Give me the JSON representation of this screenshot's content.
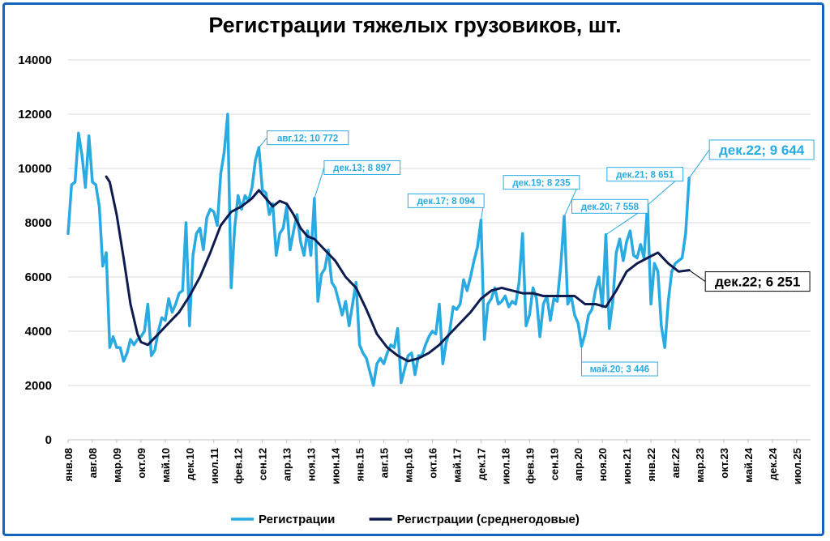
{
  "chart_data": {
    "type": "line",
    "title": "Регистрации тяжелых грузовиков, шт.",
    "ylim": [
      0,
      14000
    ],
    "yticks": [
      "0",
      "2000",
      "4000",
      "6000",
      "8000",
      "10000",
      "12000",
      "14000"
    ],
    "grid": "horizontal",
    "legend_position": "bottom",
    "x_start": "янв.08",
    "x_end": "ноя.25",
    "xtick_labels": [
      "янв.08",
      "авг.08",
      "мар.09",
      "окт.09",
      "май.10",
      "дек.10",
      "июл.11",
      "фев.12",
      "сен.12",
      "апр.13",
      "ноя.13",
      "июн.14",
      "янв.15",
      "авг.15",
      "мар.16",
      "окт.16",
      "май.17",
      "дек.17",
      "июл.18",
      "фев.19",
      "сен.19",
      "апр.20",
      "ноя.20",
      "июн.21",
      "янв.22",
      "авг.22",
      "мар.23",
      "окт.23",
      "май.24",
      "дек.24",
      "июл.25"
    ],
    "colors": {
      "registrations": "#29ABE2",
      "annual_average": "#0D1B4F"
    },
    "series": [
      {
        "name": "Регистрации",
        "points": [
          [
            "янв.08",
            7600
          ],
          [
            "фев.08",
            9400
          ],
          [
            "мар.08",
            9500
          ],
          [
            "апр.08",
            11300
          ],
          [
            "май.08",
            10500
          ],
          [
            "июн.08",
            9300
          ],
          [
            "июл.08",
            11200
          ],
          [
            "авг.08",
            9500
          ],
          [
            "сен.08",
            9400
          ],
          [
            "окт.08",
            8600
          ],
          [
            "ноя.08",
            6400
          ],
          [
            "дек.08",
            6900
          ],
          [
            "янв.09",
            3400
          ],
          [
            "фев.09",
            3800
          ],
          [
            "мар.09",
            3400
          ],
          [
            "апр.09",
            3400
          ],
          [
            "май.09",
            2900
          ],
          [
            "июн.09",
            3200
          ],
          [
            "июл.09",
            3700
          ],
          [
            "авг.09",
            3500
          ],
          [
            "сен.09",
            3700
          ],
          [
            "окт.09",
            3800
          ],
          [
            "ноя.09",
            4000
          ],
          [
            "дек.09",
            5000
          ],
          [
            "янв.10",
            3100
          ],
          [
            "фев.10",
            3300
          ],
          [
            "мар.10",
            4000
          ],
          [
            "апр.10",
            4500
          ],
          [
            "май.10",
            4400
          ],
          [
            "июн.10",
            5200
          ],
          [
            "июл.10",
            4700
          ],
          [
            "авг.10",
            5000
          ],
          [
            "сен.10",
            5400
          ],
          [
            "окт.10",
            5500
          ],
          [
            "ноя.10",
            8000
          ],
          [
            "дек.10",
            4200
          ],
          [
            "янв.11",
            6800
          ],
          [
            "фев.11",
            7600
          ],
          [
            "мар.11",
            7800
          ],
          [
            "апр.11",
            7000
          ],
          [
            "май.11",
            8200
          ],
          [
            "июн.11",
            8500
          ],
          [
            "июл.11",
            8400
          ],
          [
            "авг.11",
            7900
          ],
          [
            "сен.11",
            9800
          ],
          [
            "окт.11",
            10600
          ],
          [
            "ноя.11",
            12000
          ],
          [
            "дек.11",
            5600
          ],
          [
            "янв.12",
            7800
          ],
          [
            "фев.12",
            9000
          ],
          [
            "мар.12",
            8500
          ],
          [
            "апр.12",
            9000
          ],
          [
            "май.12",
            8800
          ],
          [
            "июн.12",
            9300
          ],
          [
            "июл.12",
            10300
          ],
          [
            "авг.12",
            10772
          ],
          [
            "сен.12",
            9200
          ],
          [
            "окт.12",
            9100
          ],
          [
            "ноя.12",
            8300
          ],
          [
            "дек.12",
            8700
          ],
          [
            "янв.13",
            6800
          ],
          [
            "фев.13",
            7600
          ],
          [
            "мар.13",
            7800
          ],
          [
            "апр.13",
            8600
          ],
          [
            "май.13",
            7000
          ],
          [
            "июн.13",
            7700
          ],
          [
            "июл.13",
            8300
          ],
          [
            "авг.13",
            7300
          ],
          [
            "сен.13",
            6800
          ],
          [
            "окт.13",
            7700
          ],
          [
            "ноя.13",
            6800
          ],
          [
            "дек.13",
            8897
          ],
          [
            "янв.14",
            5100
          ],
          [
            "фев.14",
            6100
          ],
          [
            "мар.14",
            6300
          ],
          [
            "апр.14",
            7000
          ],
          [
            "май.14",
            5800
          ],
          [
            "июн.14",
            5600
          ],
          [
            "июл.14",
            5100
          ],
          [
            "авг.14",
            4600
          ],
          [
            "сен.14",
            5100
          ],
          [
            "окт.14",
            4200
          ],
          [
            "ноя.14",
            5000
          ],
          [
            "дек.14",
            5800
          ],
          [
            "янв.15",
            3500
          ],
          [
            "фев.15",
            3200
          ],
          [
            "мар.15",
            3000
          ],
          [
            "апр.15",
            2500
          ],
          [
            "май.15",
            2000
          ],
          [
            "июн.15",
            2800
          ],
          [
            "июл.15",
            3000
          ],
          [
            "авг.15",
            2800
          ],
          [
            "сен.15",
            3200
          ],
          [
            "окт.15",
            3500
          ],
          [
            "ноя.15",
            3400
          ],
          [
            "дек.15",
            4100
          ],
          [
            "янв.16",
            2100
          ],
          [
            "фев.16",
            2600
          ],
          [
            "мар.16",
            3100
          ],
          [
            "апр.16",
            3200
          ],
          [
            "май.16",
            2400
          ],
          [
            "июн.16",
            3100
          ],
          [
            "июл.16",
            3100
          ],
          [
            "авг.16",
            3500
          ],
          [
            "сен.16",
            3800
          ],
          [
            "окт.16",
            4000
          ],
          [
            "ноя.16",
            3900
          ],
          [
            "дек.16",
            5000
          ],
          [
            "янв.17",
            2800
          ],
          [
            "фев.17",
            3600
          ],
          [
            "мар.17",
            4000
          ],
          [
            "апр.17",
            4900
          ],
          [
            "май.17",
            4800
          ],
          [
            "июн.17",
            5000
          ],
          [
            "июл.17",
            5900
          ],
          [
            "авг.17",
            5500
          ],
          [
            "сен.17",
            6000
          ],
          [
            "окт.17",
            6600
          ],
          [
            "ноя.17",
            7100
          ],
          [
            "дек.17",
            8094
          ],
          [
            "янв.18",
            3700
          ],
          [
            "фев.18",
            5000
          ],
          [
            "мар.18",
            5200
          ],
          [
            "апр.18",
            5600
          ],
          [
            "май.18",
            5000
          ],
          [
            "июн.18",
            5100
          ],
          [
            "июл.18",
            5300
          ],
          [
            "авг.18",
            4900
          ],
          [
            "сен.18",
            5100
          ],
          [
            "окт.18",
            5000
          ],
          [
            "ноя.18",
            5800
          ],
          [
            "дек.18",
            7600
          ],
          [
            "янв.19",
            4200
          ],
          [
            "фев.19",
            4600
          ],
          [
            "мар.19",
            5600
          ],
          [
            "апр.19",
            5200
          ],
          [
            "май.19",
            3800
          ],
          [
            "июн.19",
            5000
          ],
          [
            "июл.19",
            5300
          ],
          [
            "авг.19",
            4400
          ],
          [
            "сен.19",
            5200
          ],
          [
            "окт.19",
            5100
          ],
          [
            "ноя.19",
            6400
          ],
          [
            "дек.19",
            8235
          ],
          [
            "янв.20",
            5000
          ],
          [
            "фев.20",
            5300
          ],
          [
            "мар.20",
            4600
          ],
          [
            "апр.20",
            4300
          ],
          [
            "май.20",
            3446
          ],
          [
            "июн.20",
            3900
          ],
          [
            "июл.20",
            4600
          ],
          [
            "авг.20",
            4800
          ],
          [
            "сен.20",
            5500
          ],
          [
            "окт.20",
            6000
          ],
          [
            "ноя.20",
            4900
          ],
          [
            "дек.20",
            7558
          ],
          [
            "янв.21",
            4100
          ],
          [
            "фев.21",
            5100
          ],
          [
            "мар.21",
            6900
          ],
          [
            "апр.21",
            7400
          ],
          [
            "май.21",
            6600
          ],
          [
            "июн.21",
            7300
          ],
          [
            "июл.21",
            7700
          ],
          [
            "авг.21",
            6800
          ],
          [
            "сен.21",
            6700
          ],
          [
            "окт.21",
            7200
          ],
          [
            "ноя.21",
            6700
          ],
          [
            "дек.21",
            8651
          ],
          [
            "янв.22",
            5000
          ],
          [
            "фев.22",
            6500
          ],
          [
            "мар.22",
            6200
          ],
          [
            "апр.22",
            4200
          ],
          [
            "май.22",
            3400
          ],
          [
            "июн.22",
            5100
          ],
          [
            "июл.22",
            6200
          ],
          [
            "авг.22",
            6500
          ],
          [
            "сен.22",
            6600
          ],
          [
            "окт.22",
            6700
          ],
          [
            "ноя.22",
            7600
          ],
          [
            "дек.22",
            9644
          ]
        ]
      },
      {
        "name": "Регистрации (среднегодовые)",
        "points": [
          [
            "дек.08",
            9700
          ],
          [
            "янв.09",
            9500
          ],
          [
            "мар.09",
            8300
          ],
          [
            "май.09",
            6700
          ],
          [
            "июл.09",
            5000
          ],
          [
            "сен.09",
            3900
          ],
          [
            "окт.09",
            3600
          ],
          [
            "дек.09",
            3500
          ],
          [
            "мар.10",
            3900
          ],
          [
            "июн.10",
            4300
          ],
          [
            "сен.10",
            4700
          ],
          [
            "дек.10",
            5300
          ],
          [
            "мар.11",
            6000
          ],
          [
            "июн.11",
            6900
          ],
          [
            "сен.11",
            7900
          ],
          [
            "дек.11",
            8400
          ],
          [
            "мар.12",
            8600
          ],
          [
            "июн.12",
            8900
          ],
          [
            "авг.12",
            9200
          ],
          [
            "окт.12",
            8900
          ],
          [
            "дек.12",
            8600
          ],
          [
            "фев.13",
            8800
          ],
          [
            "апр.13",
            8700
          ],
          [
            "июн.13",
            8300
          ],
          [
            "авг.13",
            7800
          ],
          [
            "окт.13",
            7500
          ],
          [
            "дек.13",
            7400
          ],
          [
            "мар.14",
            7000
          ],
          [
            "июн.14",
            6600
          ],
          [
            "сен.14",
            6000
          ],
          [
            "дек.14",
            5600
          ],
          [
            "мар.15",
            4800
          ],
          [
            "июн.15",
            3900
          ],
          [
            "сен.15",
            3400
          ],
          [
            "дек.15",
            3100
          ],
          [
            "мар.16",
            2900
          ],
          [
            "июн.16",
            3000
          ],
          [
            "сен.16",
            3200
          ],
          [
            "дек.16",
            3500
          ],
          [
            "мар.17",
            3900
          ],
          [
            "июн.17",
            4300
          ],
          [
            "сен.17",
            4700
          ],
          [
            "дек.17",
            5200
          ],
          [
            "мар.18",
            5500
          ],
          [
            "июн.18",
            5600
          ],
          [
            "сен.18",
            5500
          ],
          [
            "дек.18",
            5400
          ],
          [
            "мар.19",
            5400
          ],
          [
            "июн.19",
            5300
          ],
          [
            "сен.19",
            5300
          ],
          [
            "дек.19",
            5300
          ],
          [
            "мар.20",
            5300
          ],
          [
            "июн.20",
            5000
          ],
          [
            "сен.20",
            5000
          ],
          [
            "дек.20",
            4900
          ],
          [
            "мар.21",
            5500
          ],
          [
            "июн.21",
            6200
          ],
          [
            "сен.21",
            6500
          ],
          [
            "дек.21",
            6700
          ],
          [
            "мар.22",
            6900
          ],
          [
            "июн.22",
            6500
          ],
          [
            "сен.22",
            6200
          ],
          [
            "дек.22",
            6251
          ]
        ]
      }
    ],
    "annotations": [
      {
        "x": "авг.12",
        "y": 10772,
        "text": "авг.12; 10 772",
        "series": "Регистрации"
      },
      {
        "x": "дек.13",
        "y": 8897,
        "text": "дек.13; 8 897",
        "series": "Регистрации"
      },
      {
        "x": "дек.17",
        "y": 8094,
        "text": "дек.17; 8 094",
        "series": "Регистрации"
      },
      {
        "x": "дек.19",
        "y": 8235,
        "text": "дек.19; 8 235",
        "series": "Регистрации"
      },
      {
        "x": "дек.20",
        "y": 7558,
        "text": "дек.20; 7 558",
        "series": "Регистрации"
      },
      {
        "x": "дек.21",
        "y": 8651,
        "text": "дек.21; 8 651",
        "series": "Регистрации"
      },
      {
        "x": "май.20",
        "y": 3446,
        "text": "май.20; 3 446",
        "series": "Регистрации"
      },
      {
        "x": "дек.22",
        "y": 9644,
        "text": "дек.22; 9 644",
        "series": "Регистрации",
        "style": "large"
      },
      {
        "x": "дек.22",
        "y": 6251,
        "text": "дек.22; 6 251",
        "series": "Регистрации (среднегодовые)",
        "style": "large-dark"
      }
    ]
  }
}
